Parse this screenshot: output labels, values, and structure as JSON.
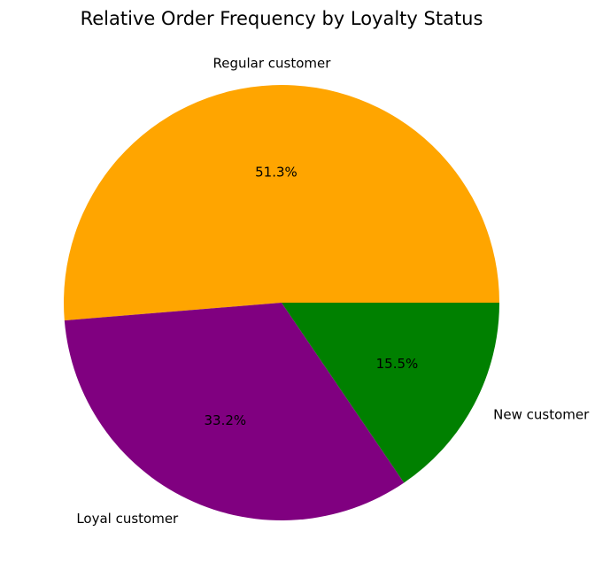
{
  "chart_data": {
    "type": "pie",
    "title": "Relative Order Frequency by Loyalty Status",
    "slices": [
      {
        "label": "Regular customer",
        "value": 51.3,
        "pct_label": "51.3%",
        "color": "#FFA500"
      },
      {
        "label": "Loyal customer",
        "value": 33.2,
        "pct_label": "33.2%",
        "color": "#800080"
      },
      {
        "label": "New customer",
        "value": 15.5,
        "pct_label": "15.5%",
        "color": "#008000"
      }
    ],
    "start_angle_deg": 0,
    "direction": "counterclockwise"
  }
}
